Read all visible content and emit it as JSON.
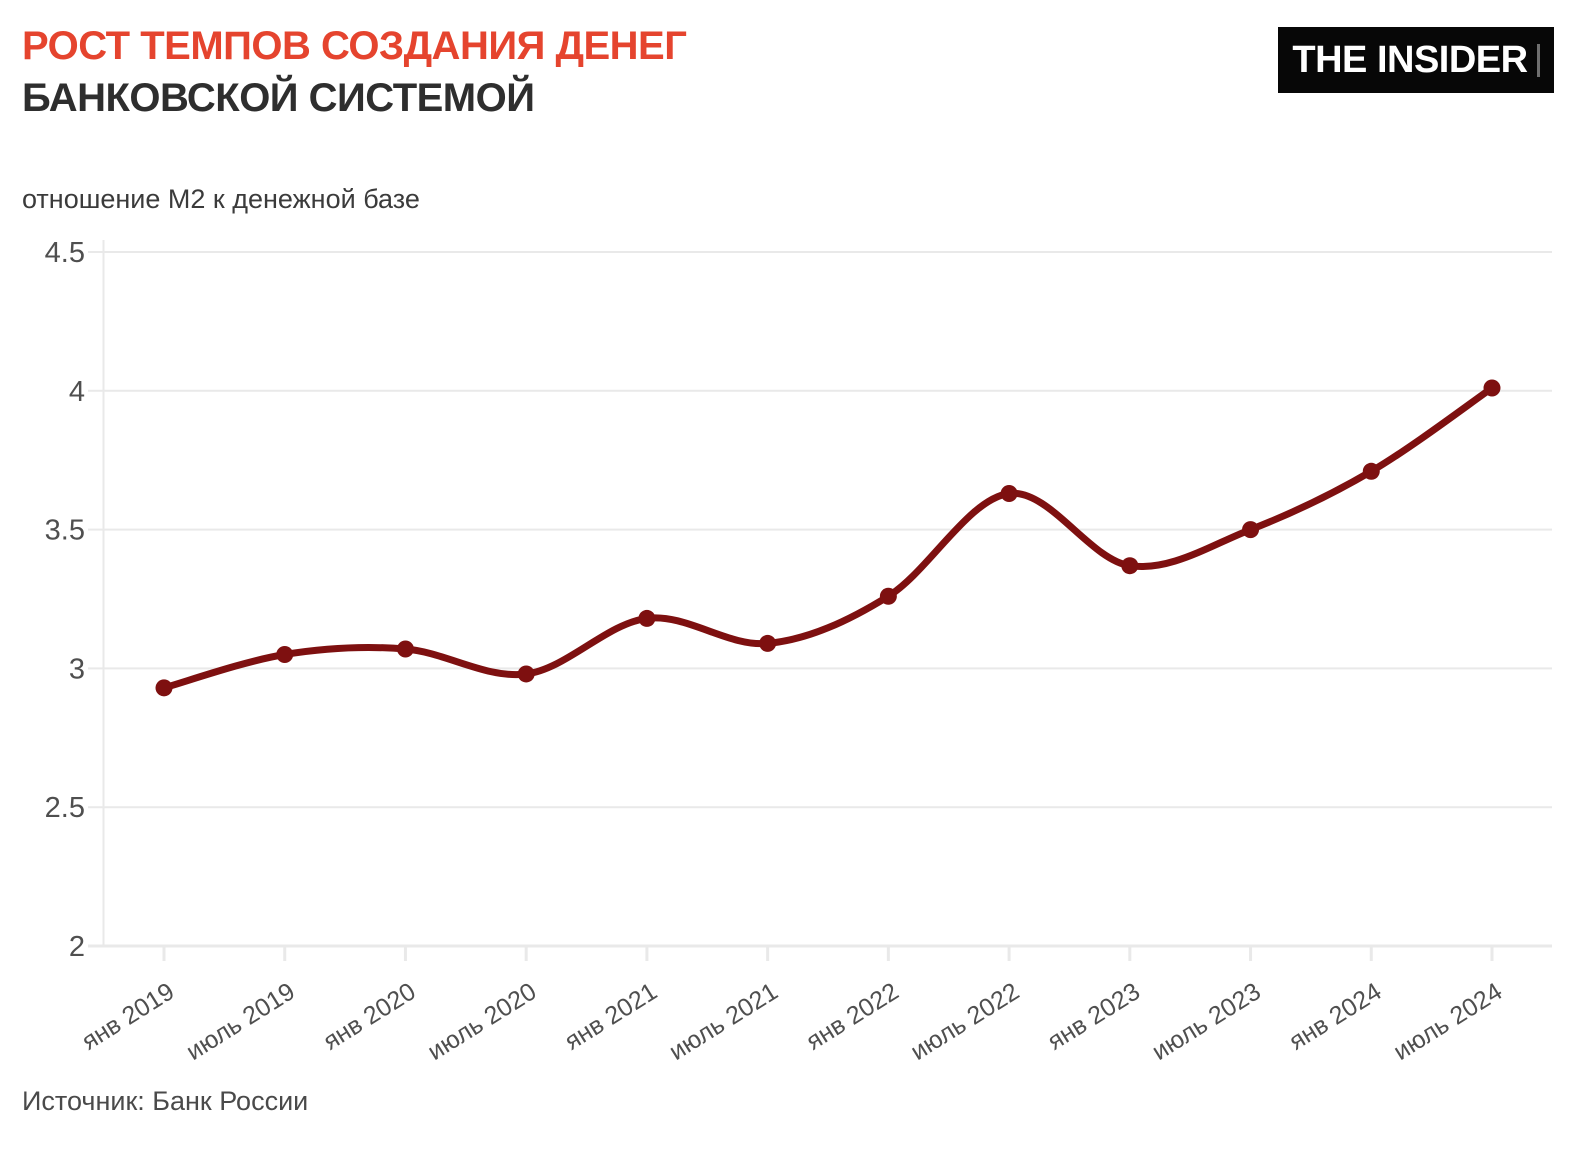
{
  "header": {
    "title_line1": "РОСТ ТЕМПОВ СОЗДАНИЯ ДЕНЕГ",
    "title_line2": "БАНКОВСКОЙ СИСТЕМОЙ",
    "logo_text": "THE INSIDER"
  },
  "subtitle": "отношение М2 к денежной базе",
  "source": "Источник: Банк России",
  "colors": {
    "title_accent": "#E5442E",
    "title_dark": "#2E2E2E",
    "line": "#7E1010",
    "grid": "#E9E9E9",
    "axis_text": "#4F4F4F",
    "logo_bg": "#070707",
    "logo_text": "#FFFFFF"
  },
  "chart_data": {
    "type": "line",
    "title": "РОСТ ТЕМПОВ СОЗДАНИЯ ДЕНЕГ БАНКОВСКОЙ СИСТЕМОЙ",
    "subtitle": "отношение М2 к денежной базе",
    "categories": [
      "янв 2019",
      "июль 2019",
      "янв 2020",
      "июль 2020",
      "янв 2021",
      "июль 2021",
      "янв 2022",
      "июль 2022",
      "янв 2023",
      "июль 2023",
      "янв 2024",
      "июль 2024"
    ],
    "values": [
      2.93,
      3.05,
      3.07,
      2.98,
      3.18,
      3.09,
      3.26,
      3.63,
      3.37,
      3.5,
      3.71,
      4.01
    ],
    "xlabel": "",
    "ylabel": "",
    "ylim": [
      2,
      4.5
    ],
    "yticks": [
      2,
      2.5,
      3,
      3.5,
      4,
      4.5
    ],
    "grid": "horizontal",
    "legend": "none",
    "marker": "circle",
    "smooth": true,
    "x_label_rotation_deg": -32
  }
}
